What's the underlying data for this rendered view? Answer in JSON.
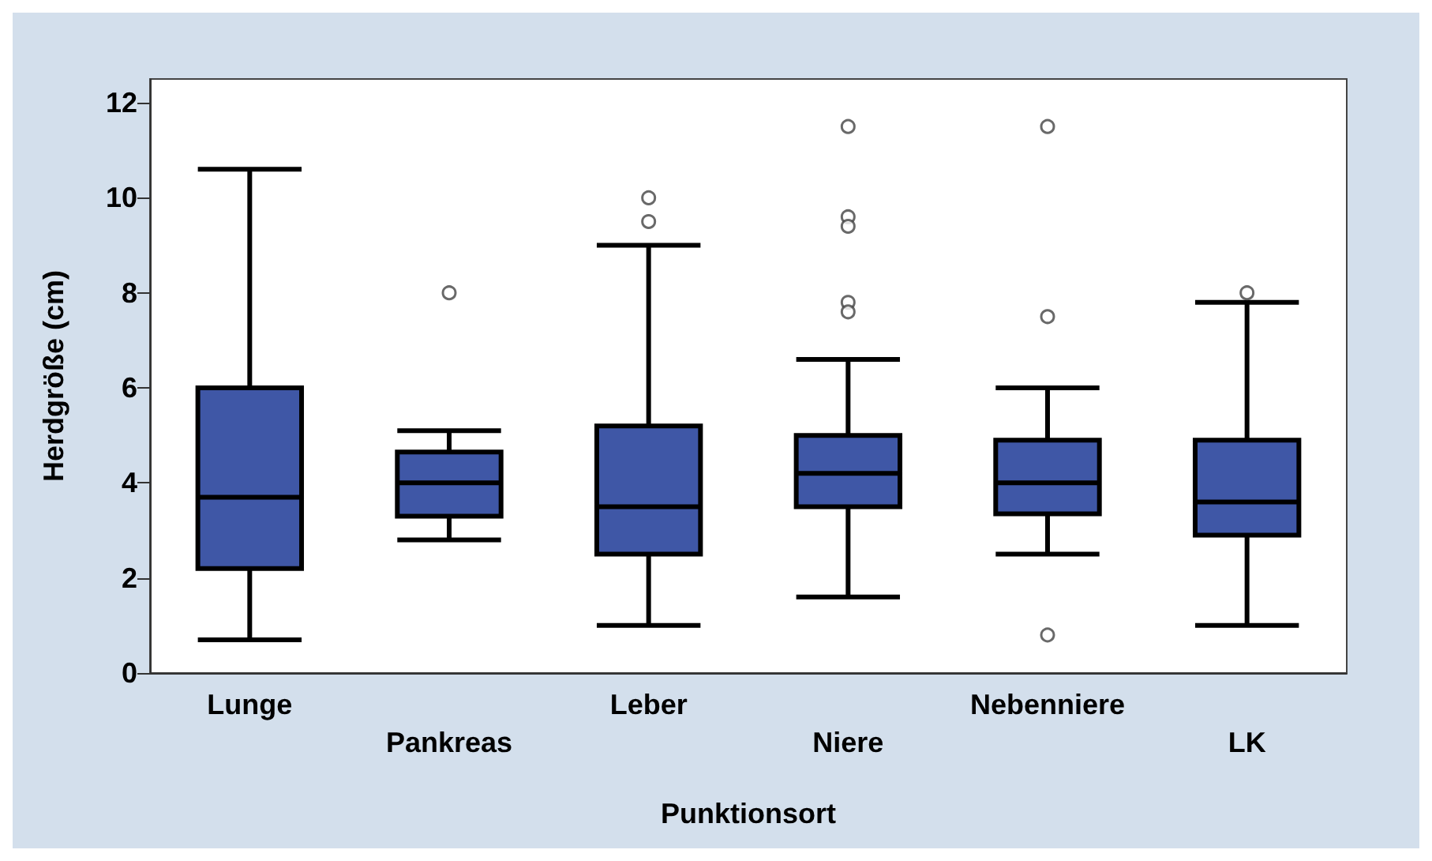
{
  "chart_data": {
    "type": "box",
    "xlabel": "Punktionsort",
    "ylabel": "Herdgröße (cm)",
    "categories": [
      "Lunge",
      "Pankreas",
      "Leber",
      "Niere",
      "Nebenniere",
      "LK"
    ],
    "color": "#3f57a6",
    "boxes": [
      {
        "low": 0.7,
        "q1": 2.2,
        "median": 3.7,
        "q3": 6.0,
        "high": 10.6
      },
      {
        "low": 2.8,
        "q1": 3.3,
        "median": 4.0,
        "q3": 4.65,
        "high": 5.1,
        "outliers": [
          8.0
        ]
      },
      {
        "low": 1.0,
        "q1": 2.5,
        "median": 3.5,
        "q3": 5.2,
        "high": 9.0,
        "outliers": [
          10.0,
          9.5
        ]
      },
      {
        "low": 1.6,
        "q1": 3.5,
        "median": 4.2,
        "q3": 5.0,
        "high": 6.6,
        "outliers": [
          11.5,
          9.6,
          9.4,
          7.8,
          7.6
        ]
      },
      {
        "low": 2.5,
        "q1": 3.35,
        "median": 4.0,
        "q3": 4.9,
        "high": 6.0,
        "outliers": [
          11.5,
          7.5,
          0.8
        ]
      },
      {
        "low": 1.0,
        "q1": 2.9,
        "median": 3.6,
        "q3": 4.9,
        "high": 7.8,
        "outliers": [
          8.0
        ]
      }
    ],
    "ylim": [
      0,
      12.5
    ],
    "yticks": [
      0,
      2,
      4,
      6,
      8,
      10,
      12
    ],
    "grid": false,
    "marker": "circle"
  }
}
